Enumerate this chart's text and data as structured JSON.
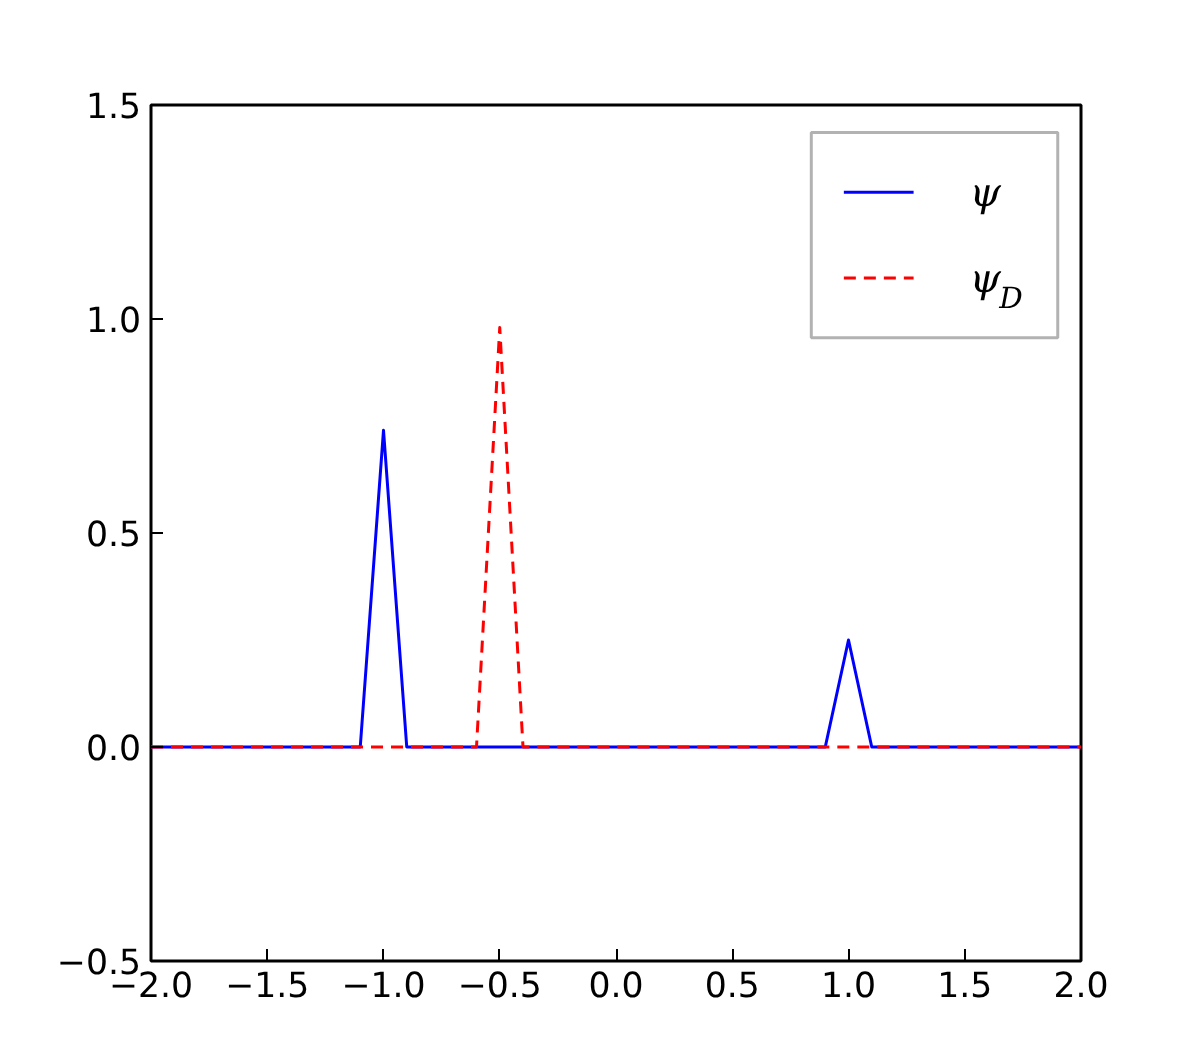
{
  "chart_data": {
    "type": "line",
    "xlim": [
      -2,
      2
    ],
    "ylim": [
      -0.5,
      1.5
    ],
    "xticks": [
      {
        "value": -2,
        "label": "−2.0"
      },
      {
        "value": -1.5,
        "label": "−1.5"
      },
      {
        "value": -1,
        "label": "−1.0"
      },
      {
        "value": -0.5,
        "label": "−0.5"
      },
      {
        "value": 0,
        "label": "0.0"
      },
      {
        "value": 0.5,
        "label": "0.5"
      },
      {
        "value": 1,
        "label": "1.0"
      },
      {
        "value": 1.5,
        "label": "1.5"
      },
      {
        "value": 2,
        "label": "2.0"
      }
    ],
    "yticks": [
      {
        "value": -0.5,
        "label": "−0.5"
      },
      {
        "value": 0,
        "label": "0.0"
      },
      {
        "value": 0.5,
        "label": "0.5"
      },
      {
        "value": 1,
        "label": "1.0"
      },
      {
        "value": 1.5,
        "label": "1.5"
      }
    ],
    "series": [
      {
        "name": "ψ",
        "color": "#0000ff",
        "line_style": "solid",
        "x": [
          -2,
          -1.1,
          -1.0,
          -0.9,
          0.9,
          1.0,
          1.1,
          2
        ],
        "values": [
          0,
          0,
          0.74,
          0,
          0,
          0.25,
          0,
          0
        ]
      },
      {
        "name": "ψ$_{D}$",
        "color": "#ff0000",
        "line_style": "dashed",
        "x": [
          -2,
          -0.6,
          -0.5,
          -0.4,
          2
        ],
        "values": [
          0,
          0,
          0.98,
          0,
          0
        ]
      }
    ],
    "legend": "top right",
    "grid": false,
    "marker": "none"
  }
}
